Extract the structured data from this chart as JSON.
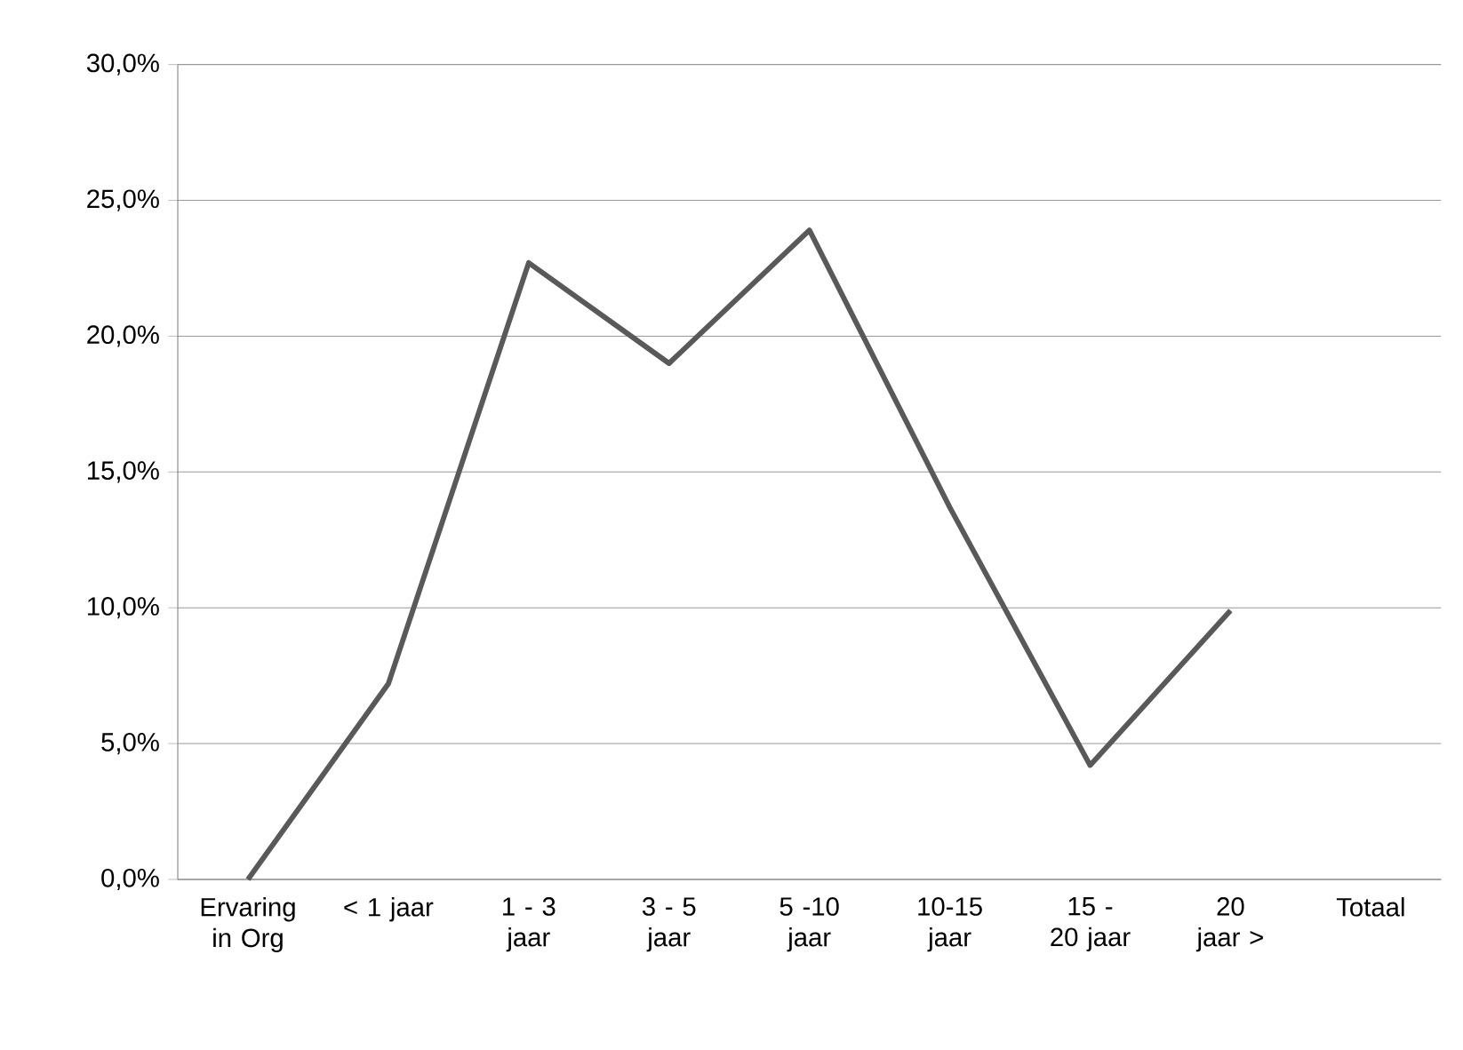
{
  "chart_data": {
    "type": "line",
    "categories": [
      "Ervaring in Org",
      "< 1 jaar",
      "1 - 3 jaar",
      "3 - 5 jaar",
      "5 -10 jaar",
      "10-15 jaar",
      "15 - 20 jaar",
      "20 jaar >",
      "Totaal"
    ],
    "series": [
      {
        "color": "#595959",
        "values": [
          0,
          7.2,
          22.7,
          19.0,
          23.9,
          13.7,
          4.2,
          9.9,
          null
        ]
      }
    ],
    "ylim": [
      0,
      30
    ],
    "yticks": [
      {
        "value": 0,
        "label": "0,0%"
      },
      {
        "value": 5,
        "label": "5,0%"
      },
      {
        "value": 10,
        "label": "10,0%"
      },
      {
        "value": 15,
        "label": "15,0%"
      },
      {
        "value": 20,
        "label": "20,0%"
      },
      {
        "value": 25,
        "label": "25,0%"
      },
      {
        "value": 30,
        "label": "30,0%"
      }
    ],
    "grid": "y",
    "marker": "none",
    "line_style": "solid"
  }
}
